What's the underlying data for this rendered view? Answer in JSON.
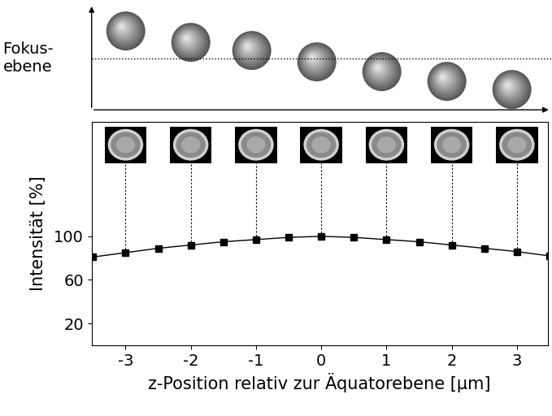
{
  "chart_data": {
    "type": "line",
    "x": [
      -3.5,
      -3.0,
      -2.5,
      -2.0,
      -1.5,
      -1.0,
      -0.5,
      0.0,
      0.5,
      1.0,
      1.5,
      2.0,
      2.5,
      3.0,
      3.5
    ],
    "values": [
      81,
      85,
      89,
      92,
      95,
      97,
      99,
      100,
      99,
      97,
      95,
      92,
      89,
      86,
      82
    ],
    "xlabel": "z-Position relativ zur Äquatorebene [µm]",
    "ylabel": "Intensität [%]",
    "annotations": [
      "Fokus-\nebene"
    ],
    "xlim": [
      -3.52,
      3.47
    ],
    "ylim": [
      0,
      205
    ],
    "xticks": [
      -3,
      -2,
      -1,
      0,
      1,
      2,
      3
    ],
    "yticks": [
      20,
      60,
      100
    ],
    "color": "#000000",
    "marker": "square",
    "line_style": "solid",
    "grid": false
  }
}
